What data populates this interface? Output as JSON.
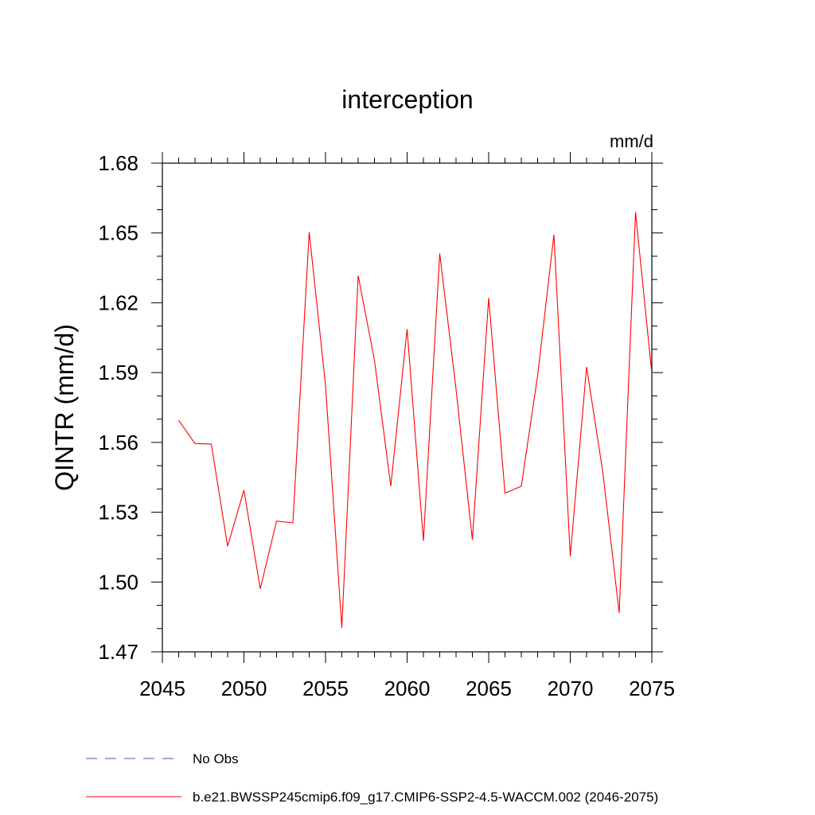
{
  "chart_data": {
    "type": "line",
    "title": "interception",
    "units_label": "mm/d",
    "ylabel": "QINTR  (mm/d)",
    "xlabel": "",
    "xlim": [
      2045,
      2075
    ],
    "ylim": [
      1.47,
      1.68
    ],
    "x_ticks": [
      "2045",
      "2050",
      "2055",
      "2060",
      "2065",
      "2070",
      "2075"
    ],
    "y_ticks": [
      "1.47",
      "1.50",
      "1.53",
      "1.56",
      "1.59",
      "1.62",
      "1.65",
      "1.68"
    ],
    "grid": false,
    "legend_position": "bottom",
    "legend": [
      {
        "name": "No Obs",
        "color": "#5b4fa0",
        "style": "dashed"
      },
      {
        "name": "b.e21.BWSSP245cmip6.f09_g17.CMIP6-SSP2-4.5-WACCM.002 (2046-2075)",
        "color": "#ff0000",
        "style": "solid"
      }
    ],
    "series": [
      {
        "name": "b.e21.BWSSP245cmip6.f09_g17.CMIP6-SSP2-4.5-WACCM.002 (2046-2075)",
        "color": "#ff0000",
        "x": [
          2046,
          2047,
          2048,
          2049,
          2050,
          2051,
          2052,
          2053,
          2054,
          2055,
          2056,
          2057,
          2058,
          2059,
          2060,
          2061,
          2062,
          2063,
          2064,
          2065,
          2066,
          2067,
          2068,
          2069,
          2070,
          2071,
          2072,
          2073,
          2074,
          2075
        ],
        "y": [
          1.5695,
          1.5595,
          1.5593,
          1.5154,
          1.5395,
          1.4971,
          1.5262,
          1.5254,
          1.6504,
          1.5845,
          1.4803,
          1.6317,
          1.5953,
          1.5412,
          1.6087,
          1.5177,
          1.6412,
          1.5828,
          1.5182,
          1.6221,
          1.5382,
          1.5412,
          1.5887,
          1.6493,
          1.5111,
          1.5924,
          1.547,
          1.4867,
          1.659,
          1.5895
        ]
      }
    ]
  }
}
